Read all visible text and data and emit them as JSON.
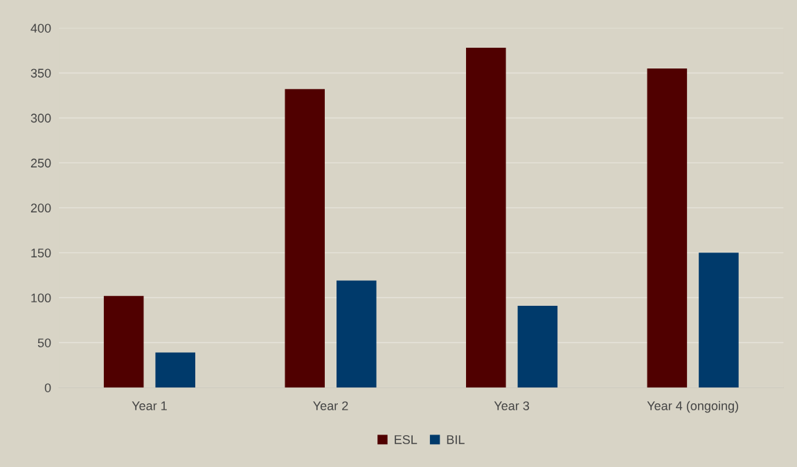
{
  "chart_data": {
    "type": "bar",
    "categories": [
      "Year 1",
      "Year 2",
      "Year 3",
      "Year 4 (ongoing)"
    ],
    "series": [
      {
        "name": "ESL",
        "color": "#500000",
        "values": [
          102,
          332,
          378,
          355
        ]
      },
      {
        "name": "BIL",
        "color": "#003a6b",
        "values": [
          39,
          119,
          91,
          150
        ]
      }
    ],
    "ylim": [
      0,
      400
    ],
    "yticks": [
      0,
      50,
      100,
      150,
      200,
      250,
      300,
      350,
      400
    ],
    "grid": "y",
    "legend": "bottom"
  }
}
